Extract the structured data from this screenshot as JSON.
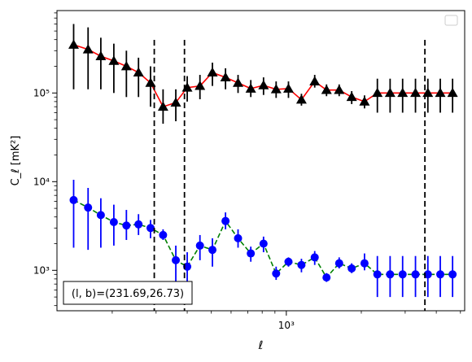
{
  "chart_data": {
    "type": "line",
    "x_scale": "log",
    "y_scale": "log",
    "xlabel": "ℓ",
    "ylabel": "C_ℓ  [mK²]",
    "xlim": [
      120,
      5200
    ],
    "ylim": [
      350,
      850000
    ],
    "x_tick_labels": [
      {
        "value": 1000,
        "label": "10³"
      }
    ],
    "y_tick_labels": [
      {
        "value": 1000,
        "label": "10³"
      },
      {
        "value": 10000,
        "label": "10⁴"
      },
      {
        "value": 100000,
        "label": "10⁵"
      }
    ],
    "vlines": [
      295,
      390,
      3600
    ],
    "legend": {
      "placement": "upper right",
      "entries": []
    },
    "annotation": "(l, b)=(231.69,26.73)",
    "series": [
      {
        "marker": "triangle",
        "marker_color": "#000000",
        "line_color": "#ff0000",
        "line_style": "solid",
        "x": [
          140,
          160,
          180,
          203,
          228,
          255,
          285,
          320,
          360,
          400,
          450,
          505,
          570,
          640,
          720,
          810,
          910,
          1020,
          1150,
          1300,
          1450,
          1630,
          1830,
          2060,
          2320,
          2610,
          2930,
          3300,
          3700,
          4150,
          4650
        ],
        "y": [
          350000,
          310000,
          260000,
          230000,
          200000,
          170000,
          130000,
          70000,
          78000,
          115000,
          120000,
          170000,
          150000,
          130000,
          112000,
          122000,
          110000,
          112000,
          84000,
          135000,
          108000,
          108000,
          90000,
          80000,
          100000,
          100000,
          100000,
          100000,
          100000,
          100000,
          100000
        ],
        "y_low": [
          110000,
          110000,
          110000,
          100000,
          90000,
          90000,
          70000,
          45000,
          48000,
          80000,
          85000,
          120000,
          110000,
          100000,
          90000,
          95000,
          88000,
          88000,
          72000,
          115000,
          92000,
          92000,
          75000,
          67000,
          60000,
          60000,
          60000,
          60000,
          60000,
          60000,
          60000
        ],
        "y_high": [
          600000,
          550000,
          420000,
          360000,
          300000,
          250000,
          200000,
          110000,
          110000,
          155000,
          160000,
          220000,
          190000,
          160000,
          140000,
          150000,
          135000,
          135000,
          98000,
          160000,
          125000,
          125000,
          105000,
          94000,
          145000,
          145000,
          145000,
          145000,
          145000,
          145000,
          145000
        ]
      },
      {
        "marker": "circle",
        "marker_color": "#0000ff",
        "line_color": "#008000",
        "line_style": "dashed",
        "x": [
          140,
          160,
          180,
          203,
          228,
          255,
          285,
          320,
          360,
          400,
          450,
          505,
          570,
          640,
          720,
          810,
          910,
          1020,
          1150,
          1300,
          1450,
          1630,
          1830,
          2060,
          2320,
          2610,
          2930,
          3300,
          3700,
          4150,
          4650
        ],
        "y": [
          6200,
          5100,
          4200,
          3500,
          3200,
          3300,
          3000,
          2500,
          1300,
          1100,
          1900,
          1700,
          3600,
          2300,
          1550,
          2000,
          920,
          1250,
          1150,
          1400,
          830,
          1200,
          1050,
          1200,
          900,
          900,
          900,
          900,
          900,
          900,
          900
        ],
        "y_low": [
          1800,
          1700,
          1800,
          1900,
          2200,
          2500,
          2300,
          2200,
          750,
          650,
          1300,
          1100,
          2900,
          1800,
          1250,
          1600,
          780,
          1100,
          950,
          1150,
          740,
          1050,
          930,
          1000,
          500,
          500,
          500,
          500,
          500,
          500,
          500
        ],
        "y_high": [
          10500,
          8500,
          6500,
          5500,
          4800,
          4300,
          3700,
          2900,
          1900,
          1600,
          2500,
          2300,
          4500,
          2900,
          1850,
          2400,
          1100,
          1400,
          1350,
          1650,
          930,
          1400,
          1200,
          1550,
          1450,
          1450,
          1450,
          1450,
          1450,
          1450,
          1450
        ]
      }
    ]
  }
}
